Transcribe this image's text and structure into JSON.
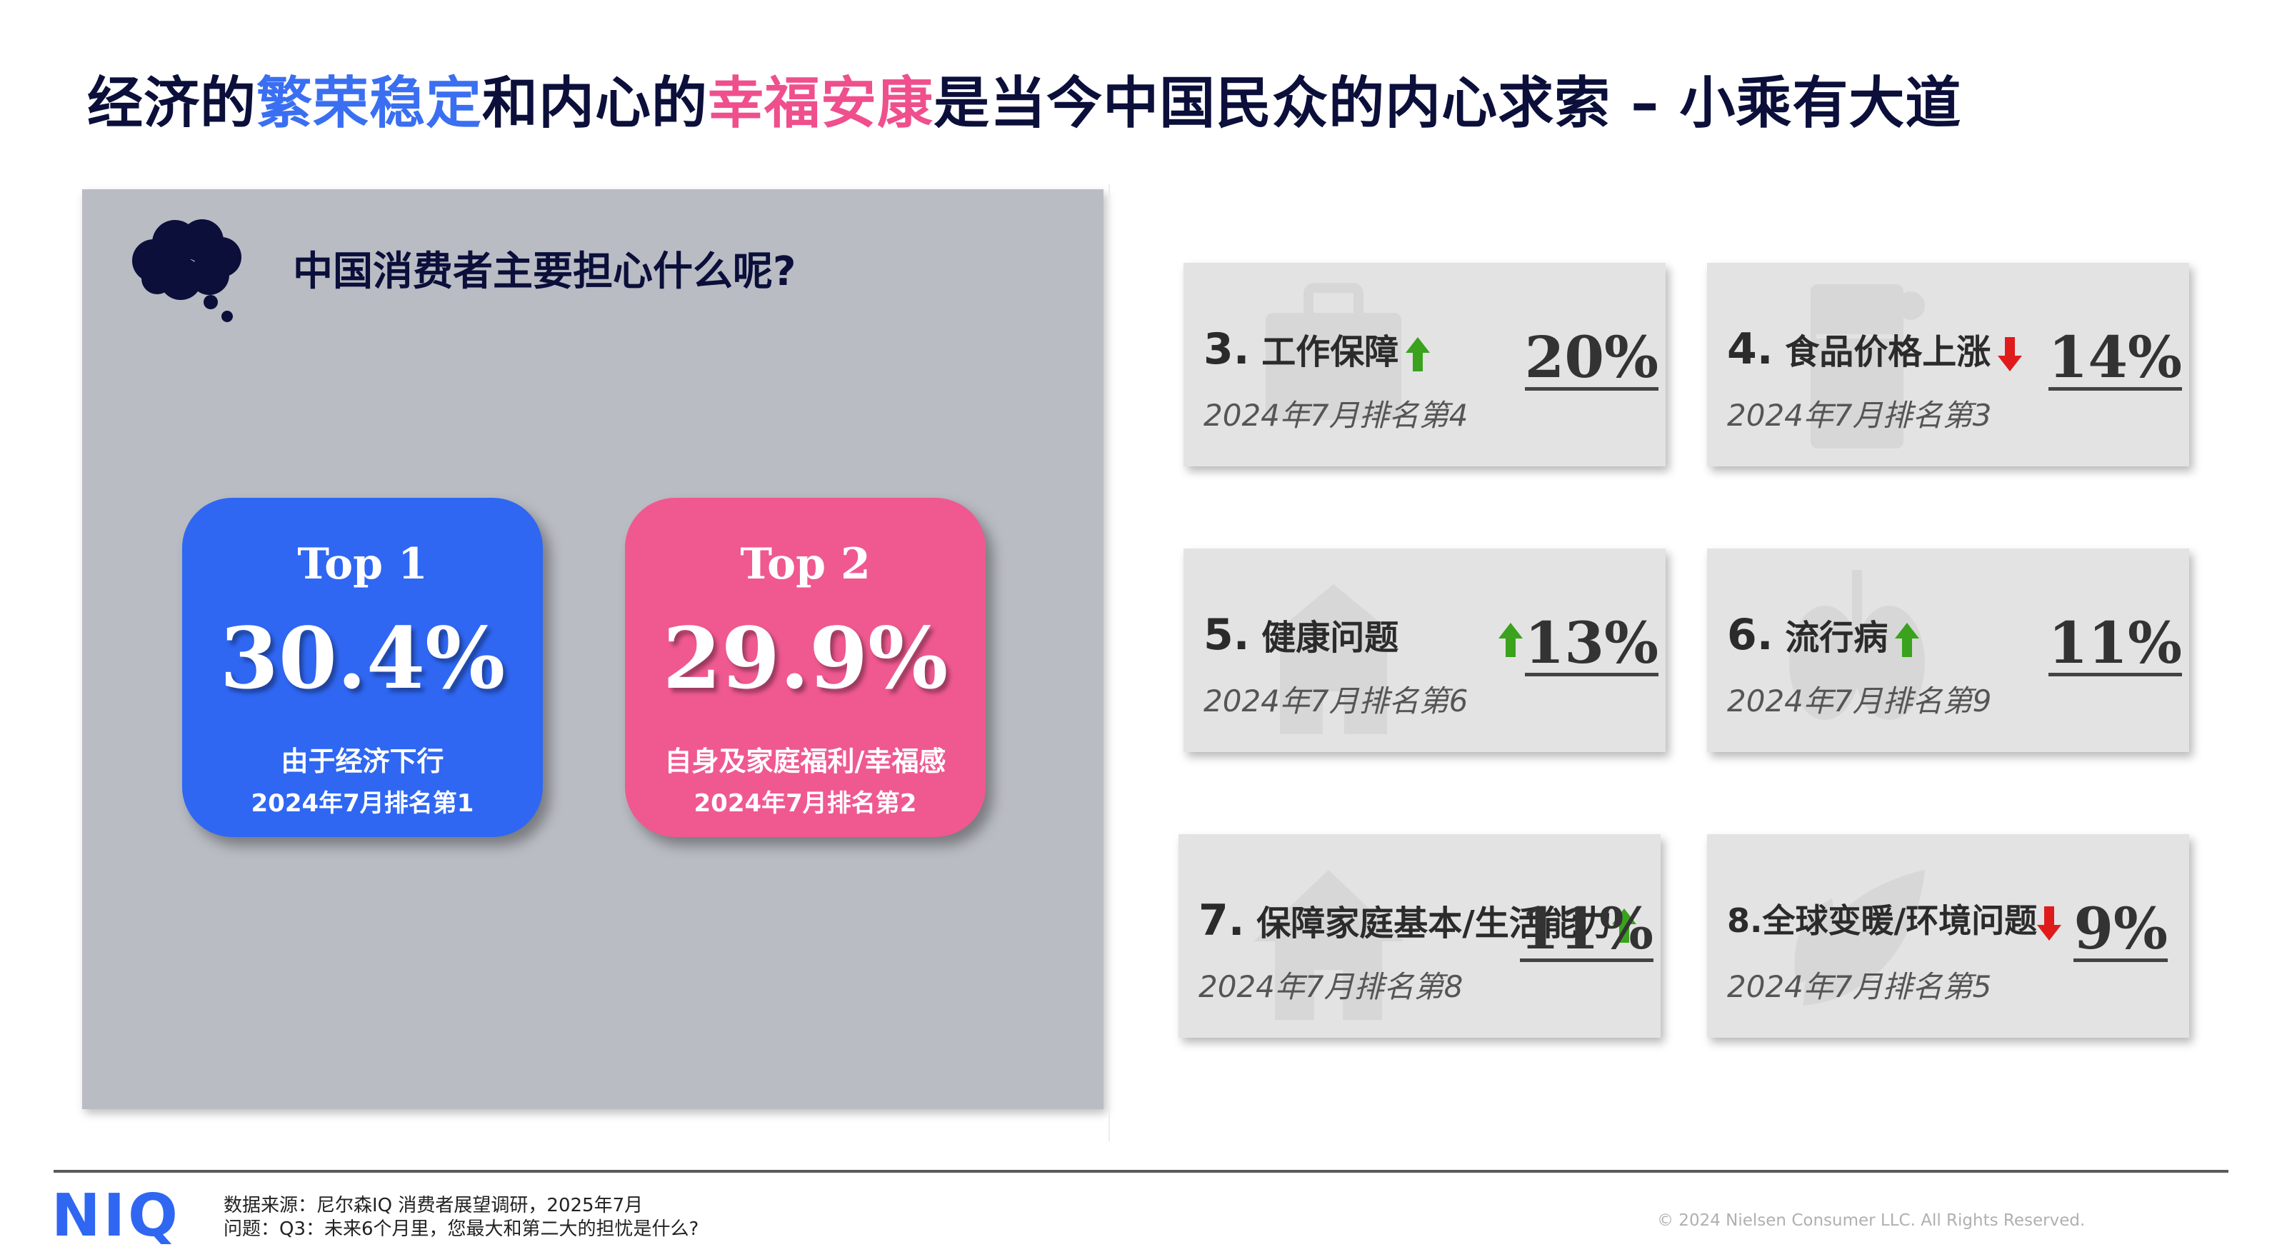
{
  "title": {
    "part1": "经济的",
    "highlight1": "繁荣稳定",
    "part2": "和内心的",
    "highlight2": "幸福安康",
    "part3": "是当今中国民众的内心求索 – 小乘有大道"
  },
  "panel": {
    "question": "中国消费者主要担心什么呢?",
    "top_cards": [
      {
        "rank": "Top 1",
        "percent": "30.4%",
        "reason": "由于经济下行",
        "note": "2024年7月排名第1",
        "color": "#2f67f2"
      },
      {
        "rank": "Top 2",
        "percent": "29.9%",
        "reason": "自身及家庭福利/幸福感",
        "note": "2024年7月排名第2",
        "color": "#ef5990"
      }
    ]
  },
  "cards": [
    {
      "num": "3.",
      "label": "工作保障",
      "trend": "up",
      "sub": "2024年7月排名第4",
      "percent": "20%",
      "icon": "briefcase-icon"
    },
    {
      "num": "4.",
      "label": "食品价格上涨",
      "trend": "down",
      "sub": "2024年7月排名第3",
      "percent": "14%",
      "icon": "fridge-icon"
    },
    {
      "num": "5.",
      "label": "健康问题",
      "trend": "up",
      "sub": "2024年7月排名第6",
      "percent": "13%",
      "icon": "hospital-icon"
    },
    {
      "num": "6.",
      "label": "流行病",
      "trend": "up",
      "sub": "2024年7月排名第9",
      "percent": "11%",
      "icon": "lungs-icon"
    },
    {
      "num": "7.",
      "label": "保障家庭基本/生活能力",
      "trend": "up",
      "sub": "2024年7月排名第8",
      "percent": "11%",
      "icon": "house-icon"
    },
    {
      "num": "8.",
      "label": "全球变暖/环境问题",
      "trend": "down",
      "sub": "2024年7月排名第5",
      "percent": "9%",
      "icon": "leaf-icon"
    }
  ],
  "colors": {
    "up": "#3aa21d",
    "down": "#e01b1b",
    "brand": "#2f67f2"
  },
  "footer": {
    "logo": "NIQ",
    "source": "数据来源：尼尔森IQ 消费者展望调研，2025年7月",
    "question": "问题：Q3：未来6个月里，您最大和第二大的担忧是什么?",
    "copyright": "© 2024 Nielsen Consumer LLC. All Rights Reserved."
  }
}
